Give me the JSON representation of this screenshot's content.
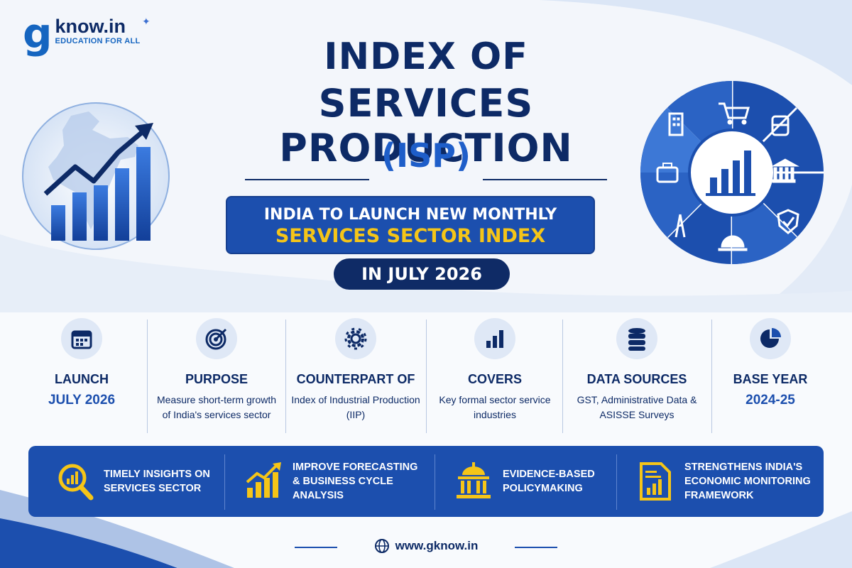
{
  "logo": {
    "mark": "g",
    "name": "know.in",
    "tagline": "EDUCATION FOR ALL"
  },
  "title": {
    "line1": "INDEX OF",
    "line2": "SERVICES PRODUCTION",
    "line3": "(ISP)"
  },
  "banner": {
    "line1": "INDIA TO LAUNCH NEW MONTHLY",
    "line2": "SERVICES SECTOR INDEX",
    "date_pill": "IN JULY 2026"
  },
  "info": [
    {
      "icon": "calendar-icon",
      "heading": "LAUNCH",
      "value": "JULY 2026",
      "desc": ""
    },
    {
      "icon": "target-icon",
      "heading": "PURPOSE",
      "value": "",
      "desc": "Measure short-term growth of India's services sector"
    },
    {
      "icon": "gear-icon",
      "heading": "COUNTERPART OF",
      "value": "",
      "desc": "Index of Industrial Production (IIP)"
    },
    {
      "icon": "bar-chart-icon",
      "heading": "COVERS",
      "value": "",
      "desc": "Key formal sector service industries"
    },
    {
      "icon": "database-icon",
      "heading": "DATA SOURCES",
      "value": "",
      "desc": "GST, Administrative Data & ASISSE Surveys"
    },
    {
      "icon": "pie-chart-icon",
      "heading": "BASE YEAR",
      "value": "2024-25",
      "desc": ""
    }
  ],
  "benefits": [
    {
      "icon": "magnifier-chart-icon",
      "text": "TIMELY INSIGHTS ON SERVICES SECTOR"
    },
    {
      "icon": "growth-chart-icon",
      "text": "IMPROVE FORECASTING & BUSINESS CYCLE ANALYSIS"
    },
    {
      "icon": "government-building-icon",
      "text": "EVIDENCE-BASED POLICYMAKING"
    },
    {
      "icon": "report-icon",
      "text": "STRENGTHENS INDIA'S ECONOMIC MONITORING FRAMEWORK"
    }
  ],
  "footer": {
    "website": "www.gknow.in"
  },
  "colors": {
    "navy": "#0d2a66",
    "blue": "#1c4fae",
    "accent_yellow": "#f5c518",
    "bright_blue": "#1e5ec9"
  }
}
